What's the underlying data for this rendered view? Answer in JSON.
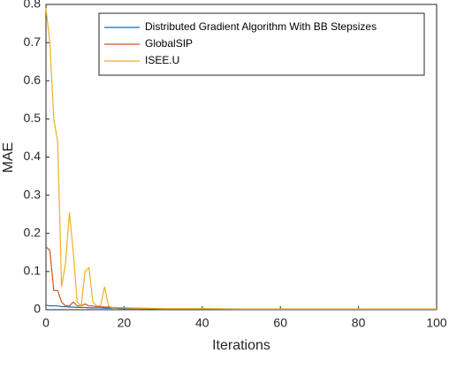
{
  "chart_data": {
    "type": "line",
    "x_label": "Iterations",
    "y_label": "MAE",
    "x": [
      0,
      1,
      2,
      3,
      4,
      5,
      6,
      7,
      8,
      9,
      10,
      11,
      12,
      13,
      14,
      15,
      16,
      17,
      18,
      19,
      20,
      25,
      30,
      40,
      50,
      60,
      70,
      80,
      90,
      100
    ],
    "series": [
      {
        "name": "Distributed Gradient Algorithm With BB Stepsizes",
        "color": "#0072bd",
        "values": [
          0.012,
          0.01,
          0.01,
          0.01,
          0.008,
          0.008,
          0.007,
          0.007,
          0.006,
          0.006,
          0.006,
          0.005,
          0.005,
          0.005,
          0.005,
          0.004,
          0.004,
          0.004,
          0.004,
          0.003,
          0.003,
          0.003,
          0.002,
          0.002,
          0.001,
          0.001,
          0.001,
          0.001,
          0.001,
          0.001
        ]
      },
      {
        "name": "GlobalSIP",
        "color": "#d95319",
        "values": [
          0.165,
          0.155,
          0.05,
          0.05,
          0.02,
          0.01,
          0.01,
          0.02,
          0.01,
          0.01,
          0.015,
          0.01,
          0.01,
          0.008,
          0.008,
          0.007,
          0.007,
          0.006,
          0.006,
          0.005,
          0.005,
          0.003,
          0.002,
          0.002,
          0.002,
          0.002,
          0.002,
          0.002,
          0.002,
          0.002
        ]
      },
      {
        "name": "ISEE.U",
        "color": "#edb120",
        "values": [
          0.79,
          0.7,
          0.5,
          0.44,
          0.06,
          0.12,
          0.255,
          0.15,
          0.02,
          0.01,
          0.1,
          0.11,
          0.02,
          0.01,
          0.01,
          0.06,
          0.01,
          0.005,
          0.005,
          0.005,
          0.005,
          0.004,
          0.003,
          0.003,
          0.002,
          0.002,
          0.002,
          0.002,
          0.002,
          0.002
        ]
      }
    ],
    "xlim": [
      0,
      100
    ],
    "xticks": [
      0,
      20,
      40,
      60,
      80,
      100
    ],
    "ylim": [
      0,
      0.8
    ],
    "yticks": [
      0,
      0.1,
      0.2,
      0.3,
      0.4,
      0.5,
      0.6,
      0.7,
      0.8
    ],
    "legend": "upper right",
    "grid": false
  }
}
